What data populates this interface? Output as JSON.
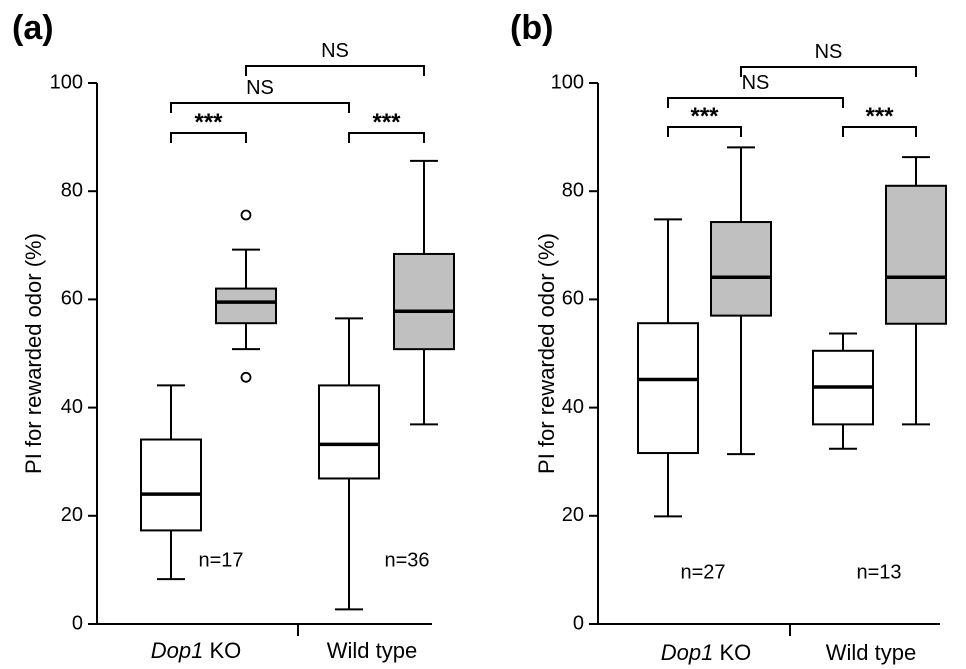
{
  "chart_data": [
    {
      "type": "box",
      "panel_label": "(a)",
      "ylabel": "PI for rewarded odor (%)",
      "ylim": [
        0,
        100
      ],
      "yticks": [
        0,
        20,
        40,
        60,
        80,
        100
      ],
      "group_labels": [
        {
          "italic": "Dop1",
          "rest": " KO"
        },
        {
          "italic": "",
          "rest": "Wild type"
        }
      ],
      "n_labels": [
        "n=17",
        "n=36"
      ],
      "colors": {
        "unrewarded_fill": "#ffffff",
        "rewarded_fill": "#c0c0c0",
        "stroke": "#000000"
      },
      "boxes": [
        {
          "group": 0,
          "condition": "white",
          "min": 8.3,
          "q1": 17.3,
          "median": 24.0,
          "q3": 34.1,
          "max": 44.1,
          "outliers": []
        },
        {
          "group": 0,
          "condition": "gray",
          "min": 50.8,
          "q1": 55.6,
          "median": 59.5,
          "q3": 62.0,
          "max": 69.2,
          "outliers": [
            75.6,
            45.6
          ]
        },
        {
          "group": 1,
          "condition": "white",
          "min": 2.7,
          "q1": 26.9,
          "median": 33.2,
          "q3": 44.1,
          "max": 56.5,
          "outliers": []
        },
        {
          "group": 1,
          "condition": "gray",
          "min": 36.9,
          "q1": 50.8,
          "median": 57.8,
          "q3": 68.4,
          "max": 85.6,
          "outliers": []
        }
      ],
      "comparisons": [
        {
          "from": 0,
          "to": 1,
          "label": "***"
        },
        {
          "from": 2,
          "to": 3,
          "label": "***"
        },
        {
          "from": 0,
          "to": 2,
          "label": "NS"
        },
        {
          "from": 1,
          "to": 3,
          "label": "NS"
        }
      ]
    },
    {
      "type": "box",
      "panel_label": "(b)",
      "ylabel": "PI for rewarded odor (%)",
      "ylim": [
        0,
        100
      ],
      "yticks": [
        0,
        20,
        40,
        60,
        80,
        100
      ],
      "group_labels": [
        {
          "italic": "Dop1",
          "rest": " KO"
        },
        {
          "italic": "",
          "rest": "Wild type"
        }
      ],
      "n_labels": [
        "n=27",
        "n=13"
      ],
      "colors": {
        "unrewarded_fill": "#ffffff",
        "rewarded_fill": "#c0c0c0",
        "stroke": "#000000"
      },
      "boxes": [
        {
          "group": 0,
          "condition": "white",
          "min": 19.9,
          "q1": 31.6,
          "median": 45.2,
          "q3": 55.6,
          "max": 74.8,
          "outliers": []
        },
        {
          "group": 0,
          "condition": "gray",
          "min": 31.4,
          "q1": 57.0,
          "median": 64.1,
          "q3": 74.3,
          "max": 88.1,
          "outliers": []
        },
        {
          "group": 1,
          "condition": "white",
          "min": 32.4,
          "q1": 36.9,
          "median": 43.8,
          "q3": 50.5,
          "max": 53.7,
          "outliers": []
        },
        {
          "group": 1,
          "condition": "gray",
          "min": 36.9,
          "q1": 55.5,
          "median": 64.1,
          "q3": 81.0,
          "max": 86.3,
          "outliers": []
        }
      ],
      "comparisons": [
        {
          "from": 0,
          "to": 1,
          "label": "***"
        },
        {
          "from": 2,
          "to": 3,
          "label": "***"
        },
        {
          "from": 0,
          "to": 2,
          "label": "NS"
        },
        {
          "from": 1,
          "to": 3,
          "label": "NS"
        }
      ]
    }
  ]
}
